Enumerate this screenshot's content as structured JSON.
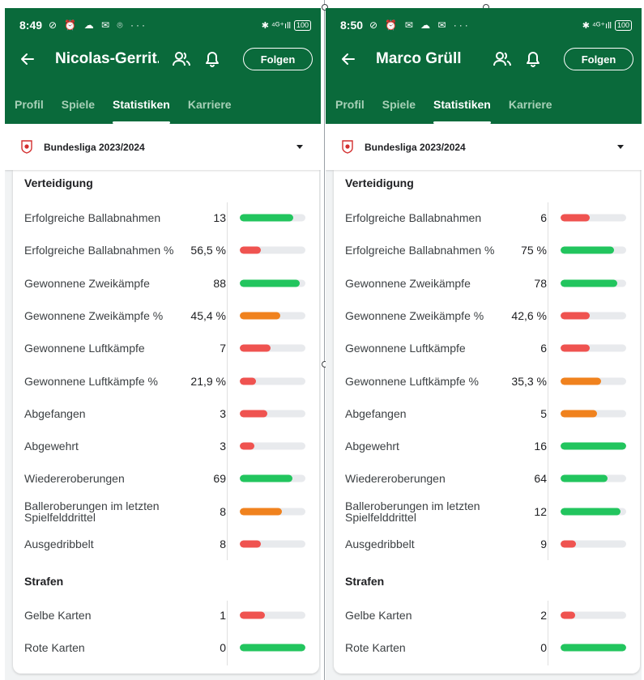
{
  "colors": {
    "header": "#0a6a3b",
    "good": "#22c55e",
    "medium": "#f0821e",
    "bad": "#ef5350",
    "track": "#e8eaed"
  },
  "tabs": [
    "Profil",
    "Spiele",
    "Statistiken",
    "Karriere"
  ],
  "follow_label": "Folgen",
  "league": "Bundesliga 2023/2024",
  "sections": {
    "defense": "Verteidigung",
    "penalties": "Strafen"
  },
  "panels": [
    {
      "status": {
        "time": "8:49",
        "icons": "⊘ ⏰ ☁ ✉ ⌾ ···",
        "right": "✱ ⁴ᴳ⁺ıll",
        "battery": "100"
      },
      "player_name": "Nicolas-Gerrit...",
      "defense": [
        {
          "label": "Erfolgreiche Ballabnahmen",
          "value": "13",
          "level": 0.82,
          "color": "good"
        },
        {
          "label": "Erfolgreiche Ballabnahmen %",
          "value": "56,5 %",
          "level": 0.32,
          "color": "bad"
        },
        {
          "label": "Gewonnene Zweikämpfe",
          "value": "88",
          "level": 0.91,
          "color": "good"
        },
        {
          "label": "Gewonnene Zweikämpfe %",
          "value": "45,4 %",
          "level": 0.62,
          "color": "medium"
        },
        {
          "label": "Gewonnene Luftkämpfe",
          "value": "7",
          "level": 0.47,
          "color": "bad"
        },
        {
          "label": "Gewonnene Luftkämpfe %",
          "value": "21,9 %",
          "level": 0.25,
          "color": "bad"
        },
        {
          "label": "Abgefangen",
          "value": "3",
          "level": 0.42,
          "color": "bad"
        },
        {
          "label": "Abgewehrt",
          "value": "3",
          "level": 0.22,
          "color": "bad"
        },
        {
          "label": "Wiedereroberungen",
          "value": "69",
          "level": 0.8,
          "color": "good"
        },
        {
          "label": "Balleroberungen im letzten Spielfelddrittel",
          "value": "8",
          "level": 0.64,
          "color": "medium"
        },
        {
          "label": "Ausgedribbelt",
          "value": "8",
          "level": 0.32,
          "color": "bad"
        }
      ],
      "penalties": [
        {
          "label": "Gelbe Karten",
          "value": "1",
          "level": 0.38,
          "color": "bad"
        },
        {
          "label": "Rote Karten",
          "value": "0",
          "level": 1.0,
          "color": "good"
        }
      ]
    },
    {
      "status": {
        "time": "8:50",
        "icons": "⊘ ⏰ ✉ ☁ ✉ ···",
        "right": "✱ ⁴ᴳ⁺ıll",
        "battery": "100"
      },
      "player_name": "Marco Grüll",
      "defense": [
        {
          "label": "Erfolgreiche Ballabnahmen",
          "value": "6",
          "level": 0.44,
          "color": "bad"
        },
        {
          "label": "Erfolgreiche Ballabnahmen %",
          "value": "75 %",
          "level": 0.82,
          "color": "good"
        },
        {
          "label": "Gewonnene Zweikämpfe",
          "value": "78",
          "level": 0.86,
          "color": "good"
        },
        {
          "label": "Gewonnene Zweikämpfe %",
          "value": "42,6 %",
          "level": 0.44,
          "color": "bad"
        },
        {
          "label": "Gewonnene Luftkämpfe",
          "value": "6",
          "level": 0.44,
          "color": "bad"
        },
        {
          "label": "Gewonnene Luftkämpfe %",
          "value": "35,3 %",
          "level": 0.62,
          "color": "medium"
        },
        {
          "label": "Abgefangen",
          "value": "5",
          "level": 0.56,
          "color": "medium"
        },
        {
          "label": "Abgewehrt",
          "value": "16",
          "level": 1.0,
          "color": "good"
        },
        {
          "label": "Wiedereroberungen",
          "value": "64",
          "level": 0.72,
          "color": "good"
        },
        {
          "label": "Balleroberungen im letzten Spielfelddrittel",
          "value": "12",
          "level": 0.91,
          "color": "good"
        },
        {
          "label": "Ausgedribbelt",
          "value": "9",
          "level": 0.24,
          "color": "bad"
        }
      ],
      "penalties": [
        {
          "label": "Gelbe Karten",
          "value": "2",
          "level": 0.22,
          "color": "bad"
        },
        {
          "label": "Rote Karten",
          "value": "0",
          "level": 1.0,
          "color": "good"
        }
      ]
    }
  ]
}
